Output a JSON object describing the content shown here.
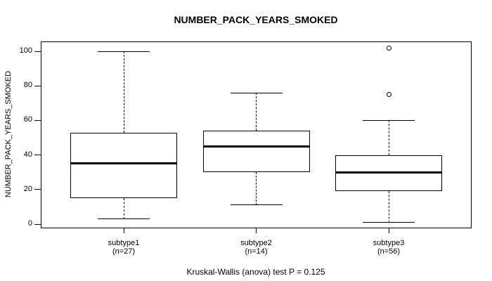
{
  "colors": {
    "foreground": "#000000",
    "background": "#ffffff"
  },
  "chart_data": {
    "type": "boxplot",
    "title": "NUMBER_PACK_YEARS_SMOKED",
    "ylabel": "NUMBER_PACK_YEARS_SMOKED",
    "xlabel": "",
    "ylim": [
      0,
      100
    ],
    "yticks": [
      0,
      20,
      40,
      60,
      80,
      100
    ],
    "grid": false,
    "legend": null,
    "footnote": "Kruskal-Wallis (anova) test P = 0.125",
    "groups": [
      {
        "label": "subtype1",
        "sublabel": "(n=27)",
        "n": 27,
        "whisker_low": 3,
        "q1": 15,
        "median": 35,
        "q3": 53,
        "whisker_high": 100,
        "outliers": []
      },
      {
        "label": "subtype2",
        "sublabel": "(n=14)",
        "n": 14,
        "whisker_low": 11,
        "q1": 30,
        "median": 45,
        "q3": 54,
        "whisker_high": 76,
        "outliers": []
      },
      {
        "label": "subtype3",
        "sublabel": "(n=56)",
        "n": 56,
        "whisker_low": 1,
        "q1": 19,
        "median": 30,
        "q3": 40,
        "whisker_high": 60,
        "outliers": [
          75,
          102
        ]
      }
    ]
  }
}
